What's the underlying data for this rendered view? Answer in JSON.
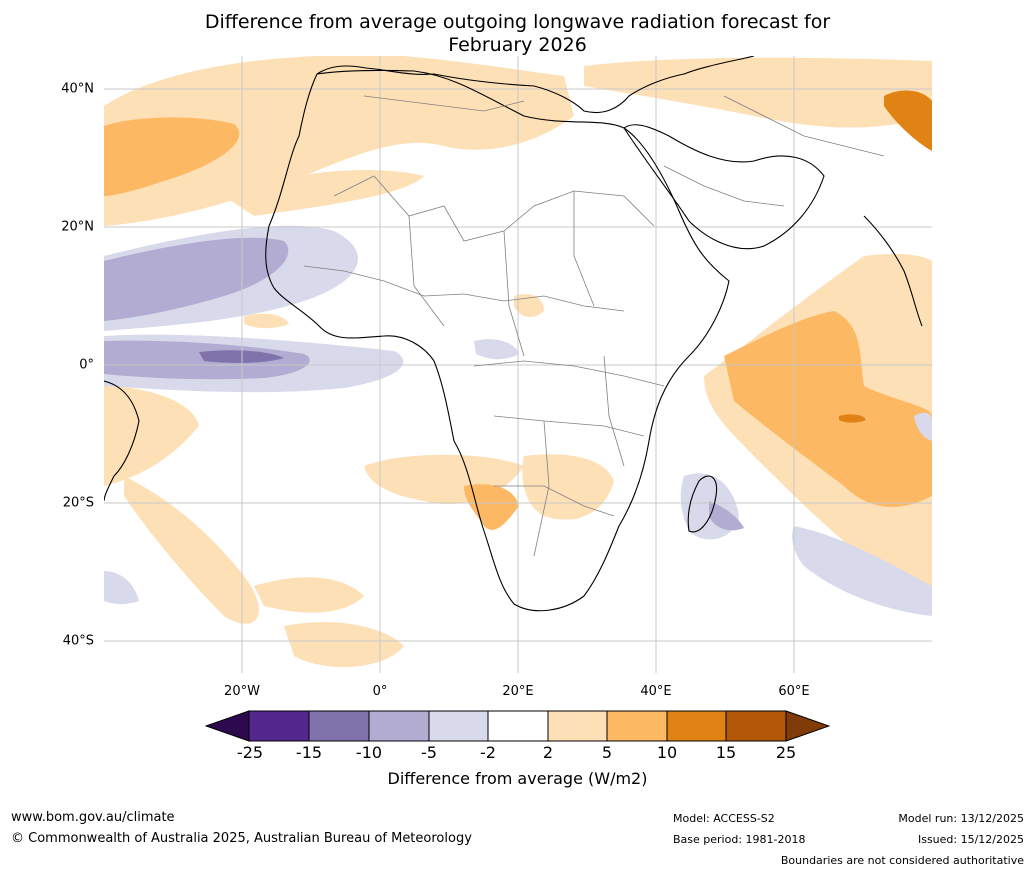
{
  "title": {
    "line1": "Difference from average outgoing longwave radiation forecast for",
    "line2": "February 2026"
  },
  "map": {
    "region": "Africa",
    "lat_labels": [
      "40°N",
      "20°N",
      "0°",
      "20°S",
      "40°S"
    ],
    "lon_labels": [
      "20°W",
      "0°",
      "20°E",
      "40°E",
      "60°E"
    ],
    "lon_range_deg": [
      -40,
      80
    ],
    "lat_range_deg": [
      -45,
      45
    ],
    "gridline_color": "#c8c8c8"
  },
  "colorbar": {
    "ticks": [
      "-25",
      "-15",
      "-10",
      "-5",
      "-2",
      "2",
      "5",
      "10",
      "15",
      "25"
    ],
    "colors": {
      "below_min": "#2d0a4e",
      "-25_-15": "#54278f",
      "-15_-10": "#8073ac",
      "-10_-5": "#b2abd2",
      "-5_-2": "#d8daeb",
      "-2_2": "#ffffff",
      "2_5": "#fee0b6",
      "5_10": "#fdb863",
      "10_15": "#e08214",
      "15_25": "#b35806",
      "above_max": "#7f3b08"
    },
    "label": "Difference from average (W/m2)"
  },
  "footer": {
    "url": "www.bom.gov.au/climate",
    "copyright": "© Commonwealth of Australia 2025, Australian Bureau of Meteorology",
    "model": "Model: ACCESS-S2",
    "base_period": "Base period: 1981-2018",
    "model_run": "Model run: 13/12/2025",
    "issued": "Issued: 15/12/2025",
    "disclaimer": "Boundaries are not considered authoritative"
  }
}
